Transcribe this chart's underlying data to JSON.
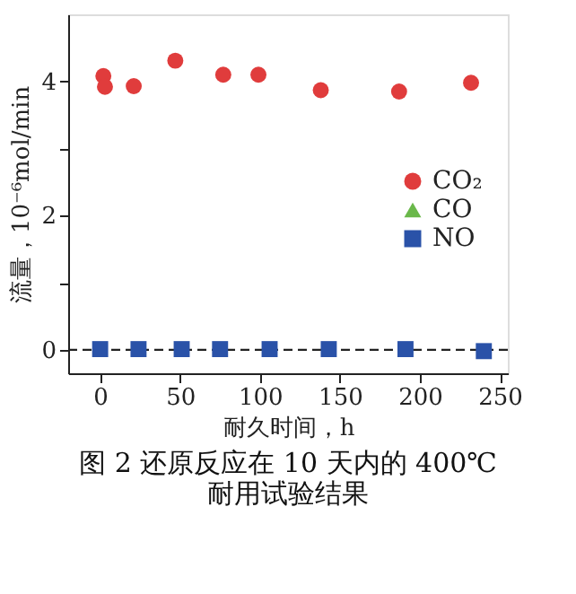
{
  "chart_data": {
    "type": "scatter",
    "title": "图 2 还原反应在 10 天内的 400℃\n耐用试验结果",
    "xlabel": "耐久时间，h",
    "ylabel": "流量，10⁻⁶mol/min",
    "xlim": [
      -20,
      255
    ],
    "xticks": [
      0,
      50,
      100,
      150,
      200,
      250
    ],
    "ylim": [
      -0.35,
      5
    ],
    "yticks": [
      0,
      {
        "value": 1,
        "label": null
      },
      2,
      {
        "value": 3,
        "label": null
      },
      4
    ],
    "series": [
      {
        "name": "CO₂",
        "color": "#e03c3c",
        "marker": "circle",
        "x": [
          2,
          3,
          21,
          47,
          77,
          99,
          138,
          187,
          232
        ],
        "values": [
          4.08,
          3.92,
          3.93,
          4.31,
          4.1,
          4.1,
          3.87,
          3.85,
          3.98
        ]
      },
      {
        "name": "CO",
        "color": "#6ab84a",
        "marker": "triangle"
      },
      {
        "name": "NO",
        "color": "#2a52a8",
        "marker": "square",
        "x": [
          0,
          24,
          51,
          75,
          106,
          143,
          191,
          240
        ],
        "values": [
          0.01,
          0.01,
          0.01,
          0.01,
          0.01,
          0.01,
          0.01,
          -0.02
        ]
      }
    ],
    "ref_lines": [
      {
        "axis": "y",
        "value": 0,
        "color": "#222222",
        "line_style": "dashed"
      }
    ],
    "legend": "right",
    "grid": false
  }
}
